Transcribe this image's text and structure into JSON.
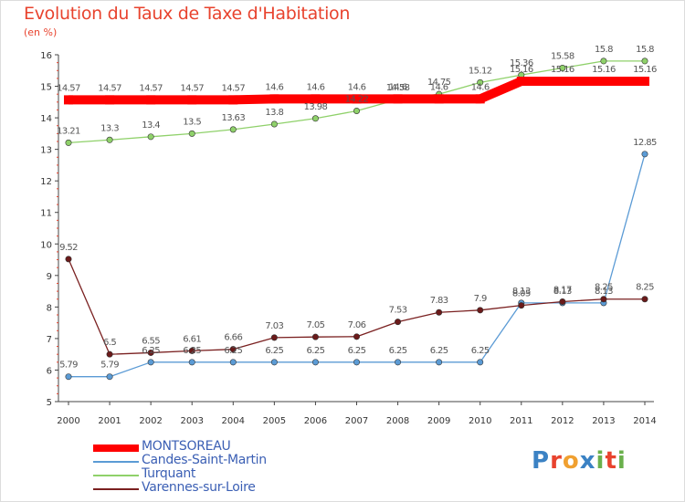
{
  "header": {
    "title": "Evolution du Taux de Taxe d'Habitation",
    "unit": "(en %)"
  },
  "logo": {
    "text": "Proxiti",
    "colors": [
      "#3b82c4",
      "#e8432e",
      "#f0a030",
      "#3b82c4",
      "#6ab04c",
      "#e8432e",
      "#6ab04c"
    ]
  },
  "chart_data": {
    "type": "line",
    "title": "Evolution du Taux de Taxe d'Habitation",
    "ylabel": "(en %)",
    "xlabel": "",
    "x": [
      "2000",
      "2001",
      "2002",
      "2003",
      "2004",
      "2005",
      "2006",
      "2007",
      "2008",
      "2009",
      "2010",
      "2011",
      "2012",
      "2013",
      "2014"
    ],
    "ylim": [
      5,
      16
    ],
    "yticks": [
      "5",
      "6",
      "7",
      "8",
      "9",
      "10",
      "11",
      "12",
      "13",
      "14",
      "15",
      "16"
    ],
    "grid": false,
    "legend_position": "bottom-left",
    "series": [
      {
        "name": "MONTSOREAU",
        "color": "#ff0000",
        "values": [
          14.57,
          14.57,
          14.57,
          14.57,
          14.57,
          14.6,
          14.6,
          14.6,
          14.6,
          14.6,
          14.6,
          15.16,
          15.16,
          15.16,
          15.16
        ],
        "labels": [
          "14.57",
          "14.57",
          "14.57",
          "14.57",
          "14.57",
          "14.6",
          "14.6",
          "14.6",
          "14.6",
          "14.6",
          "14.6",
          "15.16",
          "15.16",
          "15.16",
          "15.16"
        ]
      },
      {
        "name": "Candes-Saint-Martin",
        "color": "#5b9bd5",
        "values": [
          5.79,
          5.79,
          6.25,
          6.25,
          6.25,
          6.25,
          6.25,
          6.25,
          6.25,
          6.25,
          6.25,
          8.13,
          8.13,
          8.13,
          12.85
        ],
        "labels": [
          "5.79",
          "5.79",
          "6.25",
          "6.25",
          "6.25",
          "6.25",
          "6.25",
          "6.25",
          "6.25",
          "6.25",
          "6.25",
          "8.13",
          "8.13",
          "8.13",
          "12.85"
        ]
      },
      {
        "name": "Turquant",
        "color": "#8fd16a",
        "values": [
          13.21,
          13.3,
          13.4,
          13.5,
          13.63,
          13.8,
          13.98,
          14.22,
          14.58,
          14.75,
          15.12,
          15.36,
          15.58,
          15.8,
          15.8
        ],
        "labels": [
          "13.21",
          "13.3",
          "13.4",
          "13.5",
          "13.63",
          "13.8",
          "13.98",
          "14.22",
          "14.58",
          "14.75",
          "15.12",
          "15.36",
          "15.58",
          "15.8",
          "15.8"
        ]
      },
      {
        "name": "Varennes-sur-Loire",
        "color": "#7a2020",
        "values": [
          9.52,
          6.5,
          6.55,
          6.61,
          6.66,
          7.03,
          7.05,
          7.06,
          7.53,
          7.83,
          7.9,
          8.05,
          8.17,
          8.25,
          8.25
        ],
        "labels": [
          "9.52",
          "6.5",
          "6.55",
          "6.61",
          "6.66",
          "7.03",
          "7.05",
          "7.06",
          "7.53",
          "7.83",
          "7.9",
          "8.05",
          "8.17",
          "8.25",
          "8.25"
        ]
      }
    ]
  }
}
